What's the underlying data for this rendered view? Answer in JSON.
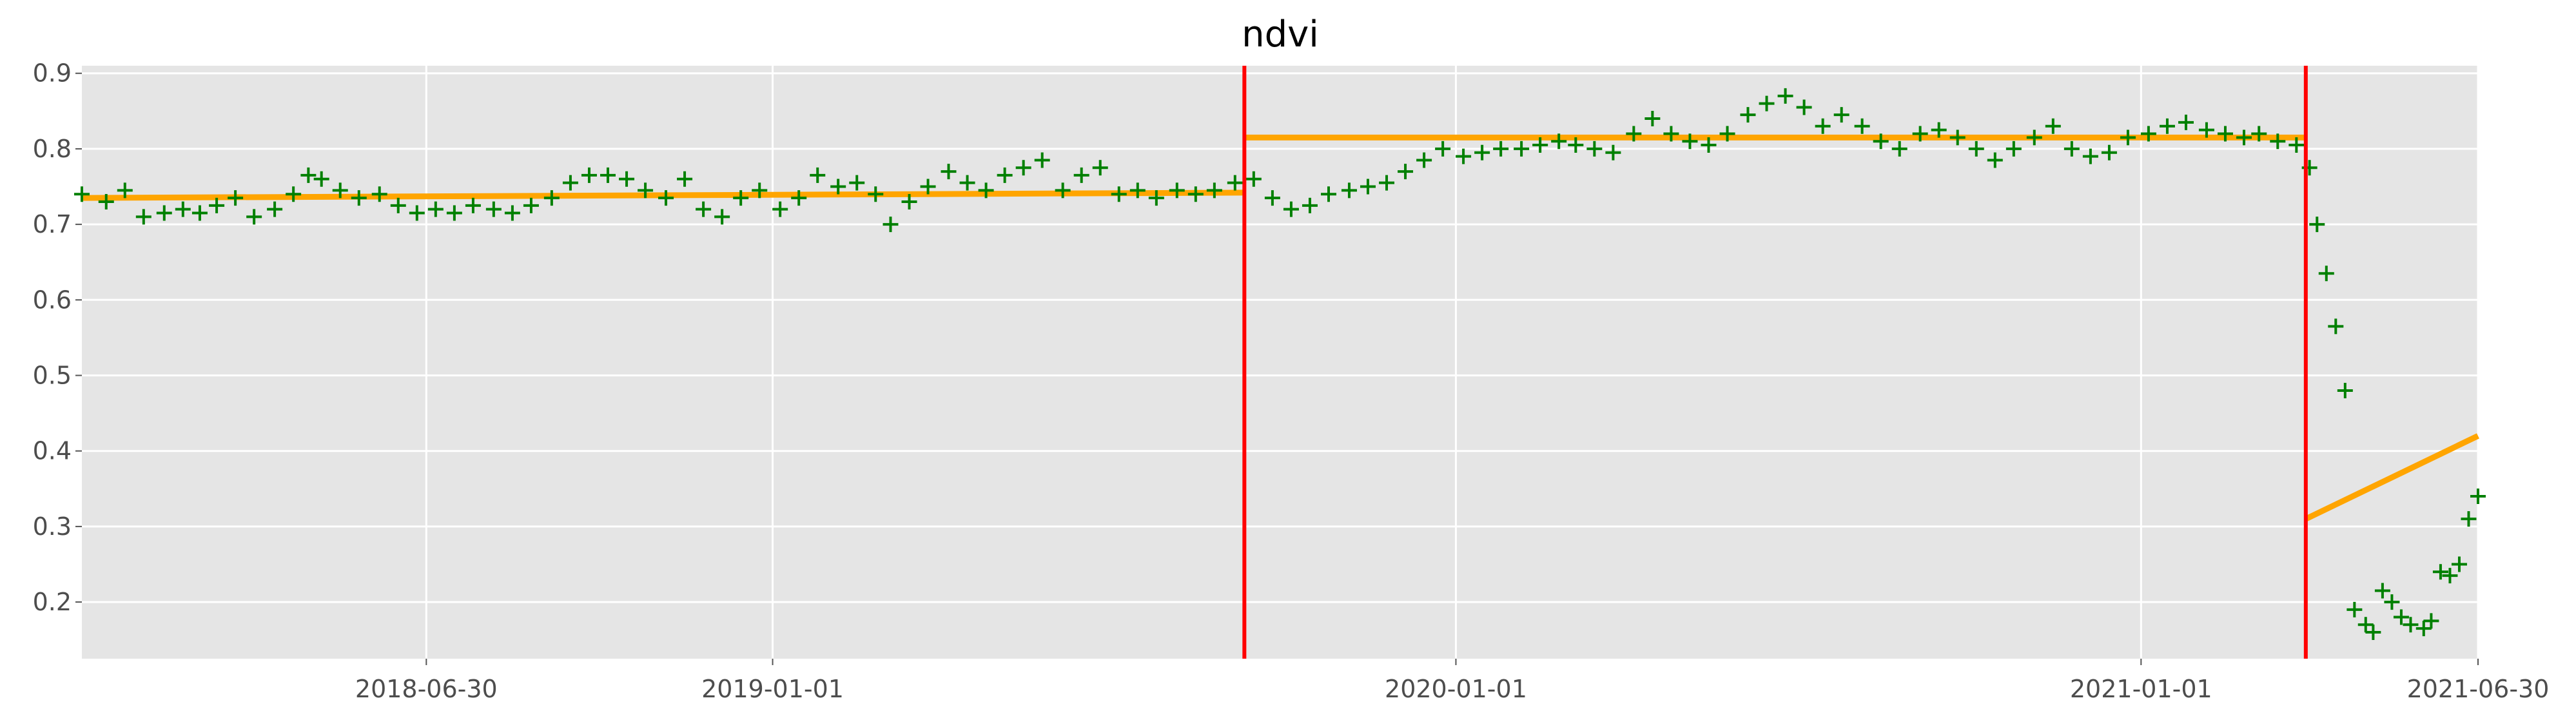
{
  "chart_data": {
    "type": "scatter",
    "title": "ndvi",
    "xlabel": "",
    "ylabel": "",
    "x_axis": {
      "type": "date",
      "range": [
        "2017-12-28",
        "2021-06-30"
      ],
      "ticks": [
        "2018-06-30",
        "2019-01-01",
        "2020-01-01",
        "2021-01-01",
        "2021-06-30"
      ]
    },
    "y_axis": {
      "range": [
        0.125,
        0.91
      ],
      "ticks": [
        0.2,
        0.3,
        0.4,
        0.5,
        0.6,
        0.7,
        0.8,
        0.9
      ],
      "tick_labels": [
        "0.2",
        "0.3",
        "0.4",
        "0.5",
        "0.6",
        "0.7",
        "0.8",
        "0.9"
      ]
    },
    "grid": true,
    "style": {
      "background": "#e5e5e5",
      "grid_color": "#ffffff",
      "point_color": "#008000",
      "marker": "plus",
      "fit_color": "#ffa500",
      "break_color": "#ff0000"
    },
    "observations": [
      [
        "2017-12-28",
        0.74
      ],
      [
        "2018-01-10",
        0.73
      ],
      [
        "2018-01-20",
        0.745
      ],
      [
        "2018-01-30",
        0.71
      ],
      [
        "2018-02-10",
        0.715
      ],
      [
        "2018-02-20",
        0.72
      ],
      [
        "2018-03-01",
        0.715
      ],
      [
        "2018-03-10",
        0.725
      ],
      [
        "2018-03-20",
        0.735
      ],
      [
        "2018-03-30",
        0.71
      ],
      [
        "2018-04-10",
        0.72
      ],
      [
        "2018-04-20",
        0.74
      ],
      [
        "2018-04-28",
        0.765
      ],
      [
        "2018-05-05",
        0.76
      ],
      [
        "2018-05-15",
        0.745
      ],
      [
        "2018-05-25",
        0.735
      ],
      [
        "2018-06-05",
        0.74
      ],
      [
        "2018-06-15",
        0.725
      ],
      [
        "2018-06-25",
        0.715
      ],
      [
        "2018-07-05",
        0.72
      ],
      [
        "2018-07-15",
        0.715
      ],
      [
        "2018-07-25",
        0.725
      ],
      [
        "2018-08-05",
        0.72
      ],
      [
        "2018-08-15",
        0.715
      ],
      [
        "2018-08-25",
        0.725
      ],
      [
        "2018-09-05",
        0.735
      ],
      [
        "2018-09-15",
        0.755
      ],
      [
        "2018-09-25",
        0.765
      ],
      [
        "2018-10-05",
        0.765
      ],
      [
        "2018-10-15",
        0.76
      ],
      [
        "2018-10-25",
        0.745
      ],
      [
        "2018-11-05",
        0.735
      ],
      [
        "2018-11-15",
        0.76
      ],
      [
        "2018-11-25",
        0.72
      ],
      [
        "2018-12-05",
        0.71
      ],
      [
        "2018-12-15",
        0.735
      ],
      [
        "2018-12-25",
        0.745
      ],
      [
        "2019-01-05",
        0.72
      ],
      [
        "2019-01-15",
        0.735
      ],
      [
        "2019-01-25",
        0.765
      ],
      [
        "2019-02-05",
        0.75
      ],
      [
        "2019-02-15",
        0.755
      ],
      [
        "2019-02-25",
        0.74
      ],
      [
        "2019-03-05",
        0.7
      ],
      [
        "2019-03-15",
        0.73
      ],
      [
        "2019-03-25",
        0.75
      ],
      [
        "2019-04-05",
        0.77
      ],
      [
        "2019-04-15",
        0.755
      ],
      [
        "2019-04-25",
        0.745
      ],
      [
        "2019-05-05",
        0.765
      ],
      [
        "2019-05-15",
        0.775
      ],
      [
        "2019-05-25",
        0.785
      ],
      [
        "2019-06-05",
        0.745
      ],
      [
        "2019-06-15",
        0.765
      ],
      [
        "2019-06-25",
        0.775
      ],
      [
        "2019-07-05",
        0.74
      ],
      [
        "2019-07-15",
        0.745
      ],
      [
        "2019-07-25",
        0.735
      ],
      [
        "2019-08-05",
        0.745
      ],
      [
        "2019-08-15",
        0.74
      ],
      [
        "2019-08-25",
        0.745
      ],
      [
        "2019-09-05",
        0.755
      ],
      [
        "2019-09-15",
        0.76
      ],
      [
        "2019-09-25",
        0.735
      ],
      [
        "2019-10-05",
        0.72
      ],
      [
        "2019-10-15",
        0.725
      ],
      [
        "2019-10-25",
        0.74
      ],
      [
        "2019-11-05",
        0.745
      ],
      [
        "2019-11-15",
        0.75
      ],
      [
        "2019-11-25",
        0.755
      ],
      [
        "2019-12-05",
        0.77
      ],
      [
        "2019-12-15",
        0.785
      ],
      [
        "2019-12-25",
        0.8
      ],
      [
        "2020-01-05",
        0.79
      ],
      [
        "2020-01-15",
        0.795
      ],
      [
        "2020-01-25",
        0.8
      ],
      [
        "2020-02-05",
        0.8
      ],
      [
        "2020-02-15",
        0.805
      ],
      [
        "2020-02-25",
        0.81
      ],
      [
        "2020-03-05",
        0.805
      ],
      [
        "2020-03-15",
        0.8
      ],
      [
        "2020-03-25",
        0.795
      ],
      [
        "2020-04-05",
        0.82
      ],
      [
        "2020-04-15",
        0.84
      ],
      [
        "2020-04-25",
        0.82
      ],
      [
        "2020-05-05",
        0.81
      ],
      [
        "2020-05-15",
        0.805
      ],
      [
        "2020-05-25",
        0.82
      ],
      [
        "2020-06-05",
        0.845
      ],
      [
        "2020-06-15",
        0.86
      ],
      [
        "2020-06-25",
        0.87
      ],
      [
        "2020-07-05",
        0.855
      ],
      [
        "2020-07-15",
        0.83
      ],
      [
        "2020-07-25",
        0.845
      ],
      [
        "2020-08-05",
        0.83
      ],
      [
        "2020-08-15",
        0.81
      ],
      [
        "2020-08-25",
        0.8
      ],
      [
        "2020-09-05",
        0.82
      ],
      [
        "2020-09-15",
        0.825
      ],
      [
        "2020-09-25",
        0.815
      ],
      [
        "2020-10-05",
        0.8
      ],
      [
        "2020-10-15",
        0.785
      ],
      [
        "2020-10-25",
        0.8
      ],
      [
        "2020-11-05",
        0.815
      ],
      [
        "2020-11-15",
        0.83
      ],
      [
        "2020-11-25",
        0.8
      ],
      [
        "2020-12-05",
        0.79
      ],
      [
        "2020-12-15",
        0.795
      ],
      [
        "2020-12-25",
        0.815
      ],
      [
        "2021-01-05",
        0.82
      ],
      [
        "2021-01-15",
        0.83
      ],
      [
        "2021-01-25",
        0.835
      ],
      [
        "2021-02-05",
        0.825
      ],
      [
        "2021-02-15",
        0.82
      ],
      [
        "2021-02-25",
        0.815
      ],
      [
        "2021-03-05",
        0.82
      ],
      [
        "2021-03-15",
        0.81
      ],
      [
        "2021-03-25",
        0.805
      ],
      [
        "2021-04-01",
        0.775
      ],
      [
        "2021-04-05",
        0.7
      ],
      [
        "2021-04-10",
        0.635
      ],
      [
        "2021-04-15",
        0.565
      ],
      [
        "2021-04-20",
        0.48
      ],
      [
        "2021-04-25",
        0.19
      ],
      [
        "2021-05-01",
        0.17
      ],
      [
        "2021-05-05",
        0.16
      ],
      [
        "2021-05-10",
        0.215
      ],
      [
        "2021-05-15",
        0.2
      ],
      [
        "2021-05-20",
        0.18
      ],
      [
        "2021-05-25",
        0.17
      ],
      [
        "2021-06-01",
        0.165
      ],
      [
        "2021-06-05",
        0.175
      ],
      [
        "2021-06-10",
        0.24
      ],
      [
        "2021-06-15",
        0.235
      ],
      [
        "2021-06-20",
        0.25
      ],
      [
        "2021-06-25",
        0.31
      ],
      [
        "2021-06-30",
        0.34
      ]
    ],
    "fit_segments": [
      {
        "x": [
          "2017-12-28",
          "2019-09-10"
        ],
        "y": [
          0.735,
          0.742
        ]
      },
      {
        "x": [
          "2019-09-10",
          "2021-03-30"
        ],
        "y": [
          0.815,
          0.815
        ]
      },
      {
        "x": [
          "2021-03-30",
          "2021-06-30"
        ],
        "y": [
          0.31,
          0.42
        ]
      }
    ],
    "breaks": [
      "2019-09-10",
      "2021-03-30"
    ]
  }
}
